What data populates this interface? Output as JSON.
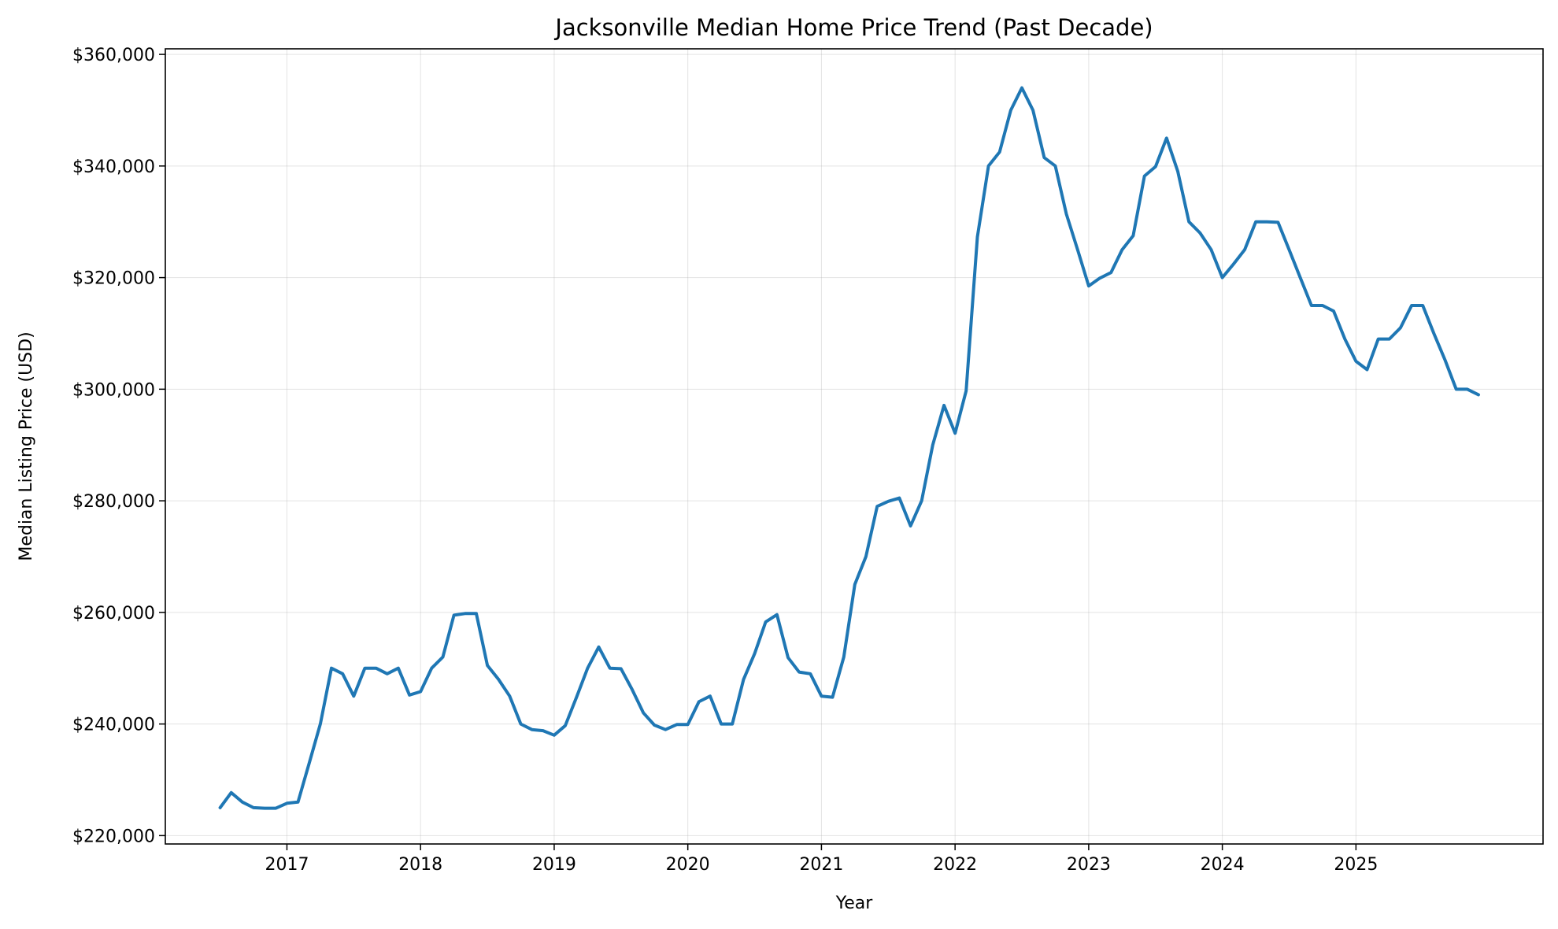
{
  "chart_data": {
    "type": "line",
    "title": "Jacksonville Median Home Price Trend (Past Decade)",
    "xlabel": "Year",
    "ylabel": "Median Listing Price (USD)",
    "xlim": [
      2016.09,
      2026.4
    ],
    "ylim": [
      218500,
      361000
    ],
    "x_ticks": [
      2017,
      2018,
      2019,
      2020,
      2021,
      2022,
      2023,
      2024,
      2025
    ],
    "x_tick_labels": [
      "2017",
      "2018",
      "2019",
      "2020",
      "2021",
      "2022",
      "2023",
      "2024",
      "2025"
    ],
    "y_ticks": [
      220000,
      240000,
      260000,
      280000,
      300000,
      320000,
      340000,
      360000
    ],
    "y_tick_labels": [
      "$220,000",
      "$240,000",
      "$260,000",
      "$280,000",
      "$300,000",
      "$320,000",
      "$340,000",
      "$360,000"
    ],
    "grid": true,
    "colors": {
      "line": "#1f77b4",
      "grid": "#b0b0b0"
    },
    "series": [
      {
        "x": [
          2016.5,
          2016.583,
          2016.667,
          2016.75,
          2016.833,
          2016.917,
          2017.0,
          2017.083,
          2017.167,
          2017.25,
          2017.333,
          2017.417,
          2017.5,
          2017.583,
          2017.667,
          2017.75,
          2017.833,
          2017.917,
          2018.0,
          2018.083,
          2018.167,
          2018.25,
          2018.333,
          2018.417,
          2018.5,
          2018.583,
          2018.667,
          2018.75,
          2018.833,
          2018.917,
          2019.0,
          2019.083,
          2019.167,
          2019.25,
          2019.333,
          2019.417,
          2019.5,
          2019.583,
          2019.667,
          2019.75,
          2019.833,
          2019.917,
          2020.0,
          2020.083,
          2020.167,
          2020.25,
          2020.333,
          2020.417,
          2020.5,
          2020.583,
          2020.667,
          2020.75,
          2020.833,
          2020.917,
          2021.0,
          2021.083,
          2021.167,
          2021.25,
          2021.333,
          2021.417,
          2021.5,
          2021.583,
          2021.667,
          2021.75,
          2021.833,
          2021.917,
          2022.0,
          2022.083,
          2022.167,
          2022.25,
          2022.333,
          2022.417,
          2022.5,
          2022.583,
          2022.667,
          2022.75,
          2022.833,
          2022.917,
          2023.0,
          2023.083,
          2023.167,
          2023.25,
          2023.333,
          2023.417,
          2023.5,
          2023.583,
          2023.667,
          2023.75,
          2023.833,
          2023.917,
          2024.0,
          2024.083,
          2024.167,
          2024.25,
          2024.333,
          2024.417,
          2024.5,
          2024.583,
          2024.667,
          2024.75,
          2024.833,
          2024.917,
          2025.0,
          2025.083,
          2025.167,
          2025.25,
          2025.333,
          2025.417,
          2025.5,
          2025.583,
          2025.667,
          2025.75,
          2025.833,
          2025.917
        ],
        "values": [
          225000,
          227700,
          226000,
          225000,
          224900,
          224900,
          225800,
          226000,
          233000,
          240000,
          250000,
          249000,
          245000,
          250000,
          250000,
          249000,
          250000,
          245200,
          245800,
          250000,
          252000,
          259500,
          259800,
          259800,
          250500,
          248000,
          245000,
          240000,
          239000,
          238800,
          238000,
          239700,
          244800,
          250000,
          253800,
          250000,
          249900,
          246200,
          242000,
          239800,
          239000,
          239900,
          239900,
          244000,
          245000,
          240000,
          240000,
          248000,
          252600,
          258300,
          259600,
          251900,
          249300,
          249000,
          245000,
          244800,
          252000,
          265000,
          270000,
          279000,
          279900,
          280500,
          275500,
          280000,
          290000,
          297100,
          292100,
          299700,
          327300,
          340000,
          342500,
          350000,
          354000,
          350000,
          341500,
          340000,
          331400,
          325000,
          318500,
          319900,
          320900,
          325000,
          327500,
          338200,
          339900,
          345000,
          339000,
          330000,
          328000,
          325000,
          320000,
          322400,
          325000,
          330000,
          330000,
          329900,
          325000,
          320000,
          315000,
          315000,
          314000,
          309000,
          305000,
          303500,
          309000,
          309000,
          311000,
          315000,
          315000,
          310000,
          305200,
          300000,
          300000,
          299000
        ]
      }
    ]
  }
}
